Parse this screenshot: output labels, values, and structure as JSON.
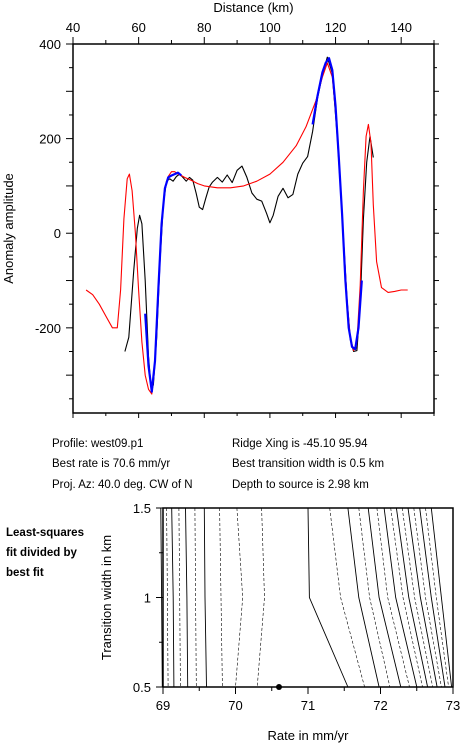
{
  "info": {
    "profile": "Profile: west09.p1",
    "ridge": "Ridge Xing is -45.10 95.94",
    "best_rate": "Best rate is 70.6 mm/yr",
    "best_width": "Best transition width is 0.5 km",
    "azimuth": "Proj. Az: 40.0 deg. CW of N",
    "depth": "Depth to source is   2.98 km"
  },
  "side_note": [
    "Least-squares",
    "fit divided by",
    "best fit"
  ],
  "colors": {
    "observed": "#000000",
    "model": "#ff0000",
    "fit": "#0000ff",
    "contour": "#000000"
  },
  "chart_data": [
    {
      "type": "line",
      "xlabel": "Distance (km)",
      "ylabel": "Anomaly amplitude",
      "xlim": [
        40,
        150
      ],
      "ylim": [
        -380,
        400
      ],
      "xticks": [
        40,
        60,
        80,
        100,
        120,
        140
      ],
      "yticks": [
        400,
        200,
        0,
        -200
      ],
      "x_axis_position": "top",
      "series": [
        {
          "color": "#000000",
          "x": [
            55.8,
            57,
            58.5,
            59.6,
            60.3,
            61,
            62,
            63,
            63.9,
            64.5,
            65.5,
            66.5,
            67.5,
            68.5,
            69.5,
            70.5,
            71.5,
            72.5,
            73.5,
            74.5,
            75.5,
            76.5,
            77.5,
            78.5,
            79.5,
            80.5,
            81.5,
            82.5,
            84,
            85.5,
            87,
            88.5,
            90,
            91.5,
            93,
            94.5,
            96,
            97.5,
            99,
            100,
            101,
            102.5,
            104,
            105.5,
            107,
            108.5,
            110,
            111.5,
            113,
            114.5,
            116,
            117.5,
            119,
            120.5,
            122,
            123.5,
            124.5,
            125.5,
            126.5,
            127.5,
            128.5,
            129.5,
            130.5,
            131.5
          ],
          "y": [
            -250,
            -220,
            -80,
            10,
            38,
            20,
            -100,
            -260,
            -335,
            -320,
            -220,
            -60,
            60,
            110,
            115,
            110,
            120,
            125,
            118,
            110,
            118,
            112,
            85,
            55,
            50,
            75,
            98,
            108,
            118,
            108,
            123,
            107,
            133,
            142,
            118,
            85,
            72,
            68,
            42,
            22,
            38,
            78,
            95,
            75,
            82,
            125,
            148,
            162,
            215,
            285,
            335,
            372,
            338,
            205,
            40,
            -140,
            -225,
            -250,
            -248,
            -150,
            30,
            150,
            205,
            160
          ]
        },
        {
          "color": "#ff0000",
          "x": [
            44,
            46,
            48,
            50,
            52,
            53.5,
            54.5,
            55.5,
            56.5,
            57.2,
            58,
            59,
            60,
            61,
            62,
            63,
            64,
            65,
            66,
            67,
            68,
            69,
            70,
            71,
            72,
            73,
            74,
            76,
            78,
            80,
            84,
            88,
            92,
            96,
            100,
            104,
            108,
            111,
            114,
            116,
            117.5,
            119,
            120.5,
            122,
            123.5,
            124.5,
            125.5,
            126.5,
            127.5,
            128.5,
            129.3,
            130,
            130.8,
            131.5,
            132.5,
            134,
            136,
            138,
            140,
            142
          ],
          "y": [
            -120,
            -130,
            -150,
            -175,
            -200,
            -200,
            -120,
            30,
            115,
            125,
            90,
            0,
            -120,
            -230,
            -300,
            -330,
            -340,
            -270,
            -120,
            20,
            95,
            120,
            130,
            130,
            125,
            122,
            118,
            112,
            105,
            100,
            96,
            96,
            100,
            110,
            125,
            150,
            185,
            225,
            280,
            330,
            360,
            330,
            220,
            40,
            -140,
            -220,
            -248,
            -230,
            -110,
            90,
            205,
            230,
            190,
            60,
            -60,
            -115,
            -125,
            -123,
            -120,
            -120
          ]
        },
        {
          "color": "#0000ff",
          "x": [
            62,
            63,
            64,
            65,
            66,
            67,
            68,
            69,
            70,
            71,
            72,
            73
          ],
          "y": [
            -170,
            -280,
            -335,
            -270,
            -120,
            20,
            95,
            118,
            122,
            125,
            128,
            122
          ]
        },
        {
          "color": "#0000ff",
          "x": [
            113,
            114.5,
            116,
            117,
            118,
            119,
            120,
            121,
            122,
            123,
            124,
            125,
            126,
            127,
            128
          ],
          "y": [
            230,
            290,
            340,
            360,
            370,
            345,
            270,
            160,
            40,
            -100,
            -200,
            -240,
            -245,
            -200,
            -100
          ]
        }
      ]
    },
    {
      "type": "contour",
      "xlabel": "Rate in mm/yr",
      "ylabel": "Transition width in km",
      "xlim": [
        69,
        73
      ],
      "ylim": [
        0.5,
        1.5
      ],
      "xticks": [
        69,
        70,
        71,
        72,
        73
      ],
      "yticks": [
        0.5,
        1.0,
        1.5
      ],
      "best_fit": {
        "x": 70.6,
        "y": 0.5
      },
      "contours": [
        {
          "style": "solid",
          "x": [
            68.97,
            68.98,
            68.99
          ]
        },
        {
          "style": "dashed",
          "x": [
            69.05,
            69.06,
            69.07
          ]
        },
        {
          "style": "solid",
          "x": [
            69.12,
            69.14,
            69.15
          ]
        },
        {
          "style": "dashed",
          "x": [
            69.22,
            69.23,
            69.24
          ]
        },
        {
          "style": "solid",
          "x": [
            69.31,
            69.33,
            69.34
          ]
        },
        {
          "style": "dashed",
          "x": [
            69.44,
            69.45,
            69.46
          ]
        },
        {
          "style": "solid",
          "x": [
            69.57,
            69.58,
            69.6
          ]
        },
        {
          "style": "dashed",
          "x": [
            69.78,
            69.8,
            69.82
          ]
        },
        {
          "style": "dashed",
          "x": [
            70.02,
            70.1,
            70.0
          ]
        },
        {
          "style": "dashed",
          "x": [
            70.36,
            70.4,
            70.3
          ]
        },
        {
          "style": "solid",
          "x": [
            71.0,
            71.02,
            71.55
          ]
        },
        {
          "style": "dashed",
          "x": [
            71.3,
            71.45,
            71.78
          ]
        },
        {
          "style": "solid",
          "x": [
            71.55,
            71.7,
            71.98
          ]
        },
        {
          "style": "dashed",
          "x": [
            71.7,
            71.85,
            72.13
          ]
        },
        {
          "style": "solid",
          "x": [
            71.83,
            71.98,
            72.28
          ]
        },
        {
          "style": "dashed",
          "x": [
            71.95,
            72.1,
            72.4
          ]
        },
        {
          "style": "solid",
          "x": [
            72.05,
            72.21,
            72.5
          ]
        },
        {
          "style": "dashed",
          "x": [
            72.14,
            72.31,
            72.58
          ]
        },
        {
          "style": "solid",
          "x": [
            72.22,
            72.39,
            72.65
          ]
        },
        {
          "style": "dashed",
          "x": [
            72.3,
            72.47,
            72.72
          ]
        },
        {
          "style": "solid",
          "x": [
            72.38,
            72.55,
            72.78
          ]
        },
        {
          "style": "dashed",
          "x": [
            72.46,
            72.62,
            72.84
          ]
        },
        {
          "style": "solid",
          "x": [
            72.54,
            72.7,
            72.89
          ]
        },
        {
          "style": "dashed",
          "x": [
            72.62,
            72.77,
            72.94
          ]
        },
        {
          "style": "solid",
          "x": [
            72.7,
            72.84,
            72.98
          ]
        }
      ]
    }
  ]
}
